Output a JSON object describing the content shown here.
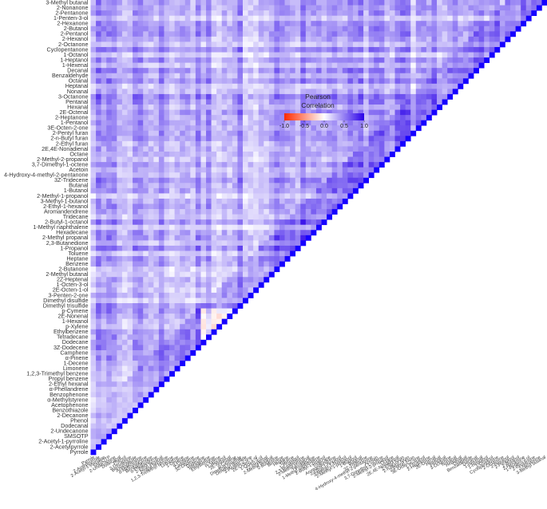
{
  "chart_data": {
    "type": "heatmap",
    "title": "",
    "layout_shape": "lower-triangle correlation matrix with diagonal cells in blue",
    "variables": [
      "3-Methyl butanal",
      "2-Nonanone",
      "2-Pentanone",
      "1-Penten-3-ol",
      "2-Hexanone",
      "2-Butanol",
      "2-Pentanol",
      "2-Hexanol",
      "2-Octanone",
      "Cyclopentanone",
      "1-Octanol",
      "1-Heptanol",
      "1-Hexenal",
      "Decanal",
      "Benzaldehyde",
      "Octanal",
      "Heptanal",
      "Nonanal",
      "3-Octanone",
      "Pentanal",
      "Hexanal",
      "2E-Octenal",
      "2-Heptanone",
      "1-Pentanol",
      "3E-Octen-2-one",
      "2-Pentyl furan",
      "2-n-Butyl furan",
      "2-Ethyl furan",
      "2E,4E-Nonadienal",
      "Octane",
      "2-Methyl-2-propanol",
      "3,7-Dimethyl-1-octene",
      "Acetoin",
      "4-Hydroxy-4-methyl-2-pentanone",
      "3Z-Tridecene",
      "Butanal",
      "1-Butanol",
      "2-Methyl-1-propanol",
      "3-Methyl-1-butanol",
      "2-Ethyl-1-hexanol",
      "Aromandendrene",
      "Tridecane",
      "2-Butyl-1-octanol",
      "1-Methyl naphthalene",
      "Hexadecane",
      "2-Methyl propanal",
      "2,3-Butanedione",
      "1-Propanol",
      "Toluene",
      "Heptane",
      "Benzene",
      "2-Butanone",
      "2-Methyl butanal",
      "2Z-Heptenal",
      "1-Octen-3-ol",
      "2E-Octen-1-ol",
      "3-Penten-2-one",
      "Dimethyl disulfide",
      "Dimethyl trisulfide",
      "p-Cymene",
      "2E-Nonenal",
      "1-Hexanol",
      "p-Xylene",
      "Ethylbenzene",
      "Tetradecane",
      "Dodecane",
      "3Z-Dodecene",
      "Camphene",
      "α-Pinene",
      "1-Decene",
      "Limonene",
      "1,2,3-Trimethyl benzene",
      "Propyl benzene",
      "2-Ethyl hexanal",
      "α-Phellandrene",
      "Benzophenone",
      "α-Methylstyrene",
      "Acetophenone",
      "Benzothiazole",
      "2-Decanone",
      "Phenol",
      "Dodecanal",
      "2-Undecanone",
      "SMSOTP",
      "2-Acetyl-1-pyrroline",
      "2-Acetylpyrrole",
      "Pyrrole"
    ],
    "value_range": [
      -1.0,
      1.0
    ],
    "colorscale": {
      "negative_color": "#ff2a00",
      "zero_color": "#ffffff",
      "positive_color": "#2a00e8",
      "diagonal_color": "#1600ff"
    },
    "legend": {
      "title": "Pearson Correlation",
      "title_line1": "Pearson",
      "title_line2": "Correlation",
      "ticks": [
        "-1.0",
        "-0.5",
        "0.0",
        "0.5",
        "1.0"
      ],
      "tick_values": [
        -1.0,
        -0.5,
        0.0,
        0.5,
        1.0
      ],
      "placement": "upper-middle"
    },
    "xlabel": "",
    "ylabel": ""
  }
}
